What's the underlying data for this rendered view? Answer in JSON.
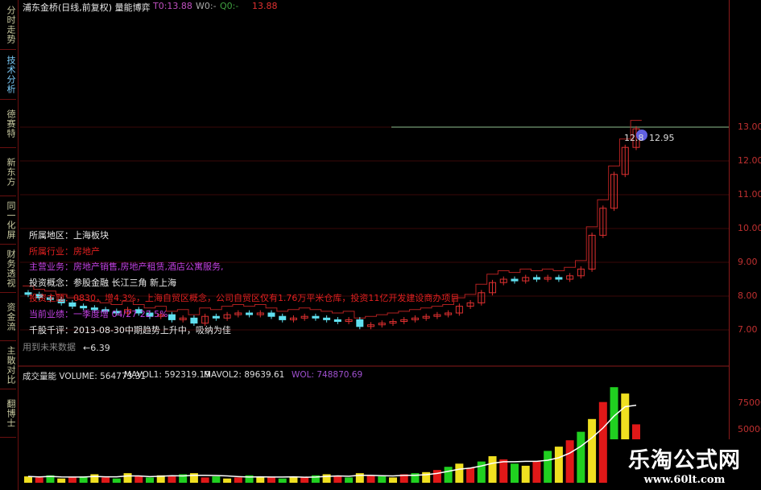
{
  "window": {
    "title": "浦东金桥(日线,前复权) 量能博弈"
  },
  "header": {
    "t0": "T0:13.88",
    "w0": "W0:-",
    "q0": "Q0:-",
    "last": "13.88"
  },
  "sidebar": {
    "tabs": [
      {
        "label": "分时走势"
      },
      {
        "label": "技术分析"
      },
      {
        "label": "德赛特"
      },
      {
        "label": "新东方"
      },
      {
        "label": "同一化屏"
      },
      {
        "label": "财务透视"
      },
      {
        "label": "资金流"
      },
      {
        "label": "主散对比"
      },
      {
        "label": "翻博士"
      }
    ]
  },
  "info": {
    "region": "所属地区：上海板块",
    "industry": "所属行业：房地产",
    "business": "主营业务：房地产销售,房地产租赁,酒店公寓服务,",
    "concept": "投资概念：参股金融 长江三角 新上海",
    "theme": "投资主题：0830，增4.3%，上海自贸区概念，公司自贸区仅有1.76万平米仓库，投资11亿开发建设商办项目",
    "performance": "当前业绩：一季度增 04/27 22.5%",
    "review": "千股千评：2013-08-30中期趋势上升中，吸纳为佳",
    "future": "用到未来数据",
    "low_marker": "←6.39",
    "high_left": "12.8",
    "high_right": "12.95"
  },
  "volume_header": {
    "volume": "成交量能 VOLUME: 564773.31",
    "mavol1": "MAVOL1: 592319.19",
    "mavol2": "MAVOL2: 89639.61",
    "wol": "WOL: 748870.69"
  },
  "watermark": {
    "name": "乐淘公式网",
    "url": "www.60lt.com"
  },
  "colors": {
    "up": "#e03030",
    "down": "#60e0f0",
    "grid": "#3a0808",
    "axis": "#c03030",
    "hline": "#90c090",
    "vol_yellow": "#f0e020",
    "vol_red": "#e01818",
    "vol_green": "#20d020"
  },
  "chart_data": {
    "type": "candlestick",
    "price_ticks": [
      "13.00",
      "12.00",
      "11.00",
      "10.00",
      "9.00",
      "8.00",
      "7.00"
    ],
    "price_range": [
      6.3,
      13.4
    ],
    "volume_ticks": [
      "75000",
      "50000"
    ],
    "volume_range": [
      0,
      95000
    ],
    "close": [
      8.05,
      7.95,
      7.9,
      7.8,
      7.7,
      7.65,
      7.6,
      7.55,
      7.5,
      7.6,
      7.5,
      7.4,
      7.45,
      7.3,
      7.35,
      7.2,
      7.4,
      7.35,
      7.45,
      7.5,
      7.45,
      7.5,
      7.4,
      7.3,
      7.35,
      7.4,
      7.35,
      7.3,
      7.25,
      7.3,
      7.1,
      7.15,
      7.2,
      7.25,
      7.3,
      7.35,
      7.4,
      7.45,
      7.5,
      7.7,
      7.8,
      8.1,
      8.4,
      8.5,
      8.45,
      8.55,
      8.5,
      8.55,
      8.5,
      8.6,
      8.8,
      9.8,
      10.6,
      11.6,
      12.4,
      12.95
    ],
    "volume": [
      6000,
      5000,
      7000,
      4000,
      5000,
      6000,
      8000,
      5000,
      4000,
      9000,
      6000,
      5000,
      7000,
      6000,
      8000,
      9000,
      5000,
      6000,
      4000,
      5000,
      7000,
      6000,
      5000,
      4000,
      6000,
      5000,
      7000,
      8000,
      6000,
      5000,
      9000,
      7000,
      6000,
      5000,
      8000,
      9000,
      10000,
      12000,
      15000,
      18000,
      14000,
      20000,
      25000,
      22000,
      18000,
      16000,
      20000,
      30000,
      34000,
      40000,
      48000,
      60000,
      76000,
      90000,
      84000,
      55000
    ]
  }
}
